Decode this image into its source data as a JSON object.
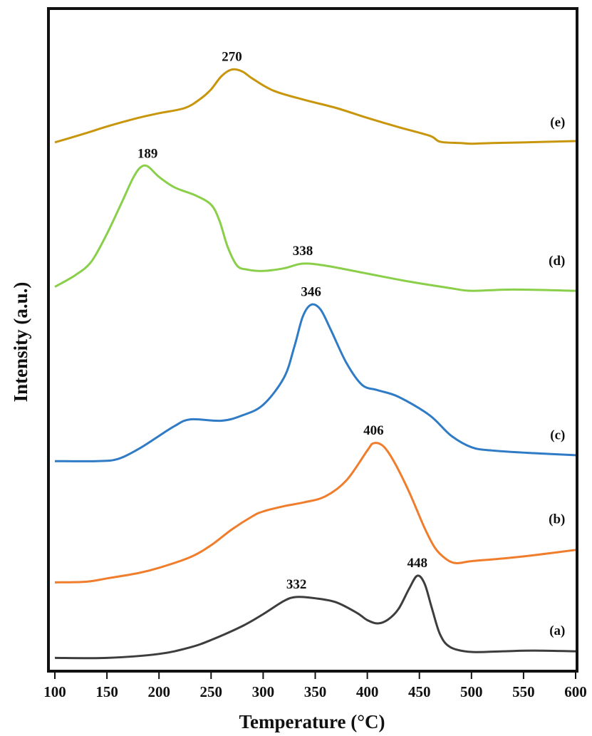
{
  "chart_data": {
    "type": "line",
    "title": "",
    "xlabel": "Temperature (°C)",
    "xlabel_main": "Temperature (",
    "xlabel_sup": "o",
    "xlabel_end": "C)",
    "ylabel": "Intensity (a.u.)",
    "xlim": [
      95,
      602
    ],
    "ylim": [
      0,
      100
    ],
    "xticks": [
      100,
      150,
      200,
      250,
      300,
      350,
      400,
      450,
      500,
      550,
      600
    ],
    "grid": false,
    "legend": "none",
    "series": [
      {
        "name": "(a)",
        "color": "#3d3d3d",
        "x": [
          100,
          150,
          200,
          230,
          250,
          280,
          300,
          320,
          332,
          350,
          370,
          390,
          400,
          410,
          420,
          430,
          440,
          448,
          455,
          462,
          470,
          480,
          500,
          530,
          560,
          600
        ],
        "y": [
          2.0,
          2.0,
          2.6,
          3.6,
          4.7,
          6.8,
          8.6,
          10.6,
          11.2,
          11.0,
          10.4,
          8.8,
          7.7,
          7.2,
          7.8,
          9.4,
          12.4,
          14.4,
          13.2,
          9.5,
          5.5,
          3.6,
          2.9,
          3.0,
          3.1,
          3.0
        ],
        "peaks": [
          332,
          448
        ],
        "label_pos": [
          590,
          5.5
        ]
      },
      {
        "name": "(b)",
        "color": "#ef7d2c",
        "x": [
          100,
          130,
          150,
          180,
          200,
          230,
          250,
          270,
          290,
          300,
          320,
          340,
          360,
          380,
          400,
          406,
          415,
          425,
          440,
          455,
          465,
          475,
          485,
          500,
          530,
          560,
          600
        ],
        "y": [
          13.4,
          13.5,
          14.0,
          14.8,
          15.6,
          17.2,
          19.0,
          21.4,
          23.4,
          24.1,
          24.9,
          25.5,
          26.4,
          28.8,
          33.3,
          34.4,
          34.0,
          31.8,
          27.1,
          21.6,
          18.6,
          17.0,
          16.3,
          16.6,
          17.0,
          17.5,
          18.3
        ],
        "peaks": [
          406
        ],
        "label_pos": [
          590,
          22.3
        ]
      },
      {
        "name": "(c)",
        "color": "#2f7bc6",
        "x": [
          100,
          140,
          160,
          180,
          200,
          215,
          230,
          260,
          280,
          300,
          320,
          330,
          338,
          346,
          355,
          365,
          380,
          395,
          410,
          430,
          460,
          480,
          500,
          520,
          560,
          600
        ],
        "y": [
          31.7,
          31.7,
          32.0,
          33.5,
          35.5,
          37.0,
          38.0,
          37.8,
          38.6,
          40.2,
          44.3,
          49.0,
          53.5,
          55.3,
          54.6,
          51.5,
          46.5,
          43.2,
          42.4,
          41.4,
          38.6,
          35.6,
          33.8,
          33.3,
          32.9,
          32.6
        ],
        "peaks": [
          346
        ],
        "label_pos": [
          590,
          35.0
        ]
      },
      {
        "name": "(d)",
        "color": "#8acf4a",
        "x": [
          100,
          120,
          135,
          150,
          165,
          175,
          182,
          189,
          200,
          215,
          235,
          250,
          258,
          266,
          275,
          285,
          300,
          320,
          338,
          360,
          400,
          440,
          480,
          500,
          540,
          600
        ],
        "y": [
          58.0,
          59.8,
          61.8,
          66.0,
          71.0,
          74.4,
          76.0,
          76.2,
          74.6,
          73.0,
          71.8,
          70.4,
          68.0,
          64.0,
          61.2,
          60.6,
          60.4,
          60.8,
          61.5,
          61.2,
          60.0,
          58.8,
          57.8,
          57.4,
          57.6,
          57.4
        ],
        "peaks": [
          189,
          338
        ],
        "label_pos": [
          590,
          61.3
        ]
      },
      {
        "name": "(e)",
        "color": "#c8960c",
        "x": [
          100,
          130,
          150,
          180,
          200,
          225,
          240,
          250,
          260,
          270,
          280,
          290,
          310,
          340,
          370,
          400,
          430,
          460,
          470,
          490,
          500,
          520,
          550,
          600
        ],
        "y": [
          79.8,
          81.2,
          82.2,
          83.5,
          84.2,
          85.0,
          86.4,
          87.8,
          89.8,
          90.8,
          90.5,
          89.4,
          87.6,
          86.2,
          85.0,
          83.5,
          82.1,
          80.8,
          79.9,
          79.7,
          79.6,
          79.7,
          79.8,
          80.0
        ],
        "peaks": [
          270
        ],
        "label_pos": [
          590,
          82.2
        ]
      }
    ],
    "annotations": [
      {
        "text": "332",
        "x": 332,
        "y": 11.2
      },
      {
        "text": "448",
        "x": 448,
        "y": 14.4
      },
      {
        "text": "406",
        "x": 406,
        "y": 34.4
      },
      {
        "text": "346",
        "x": 346,
        "y": 55.3
      },
      {
        "text": "189",
        "x": 189,
        "y": 76.2
      },
      {
        "text": "338",
        "x": 338,
        "y": 61.5
      },
      {
        "text": "270",
        "x": 270,
        "y": 90.8
      }
    ]
  }
}
